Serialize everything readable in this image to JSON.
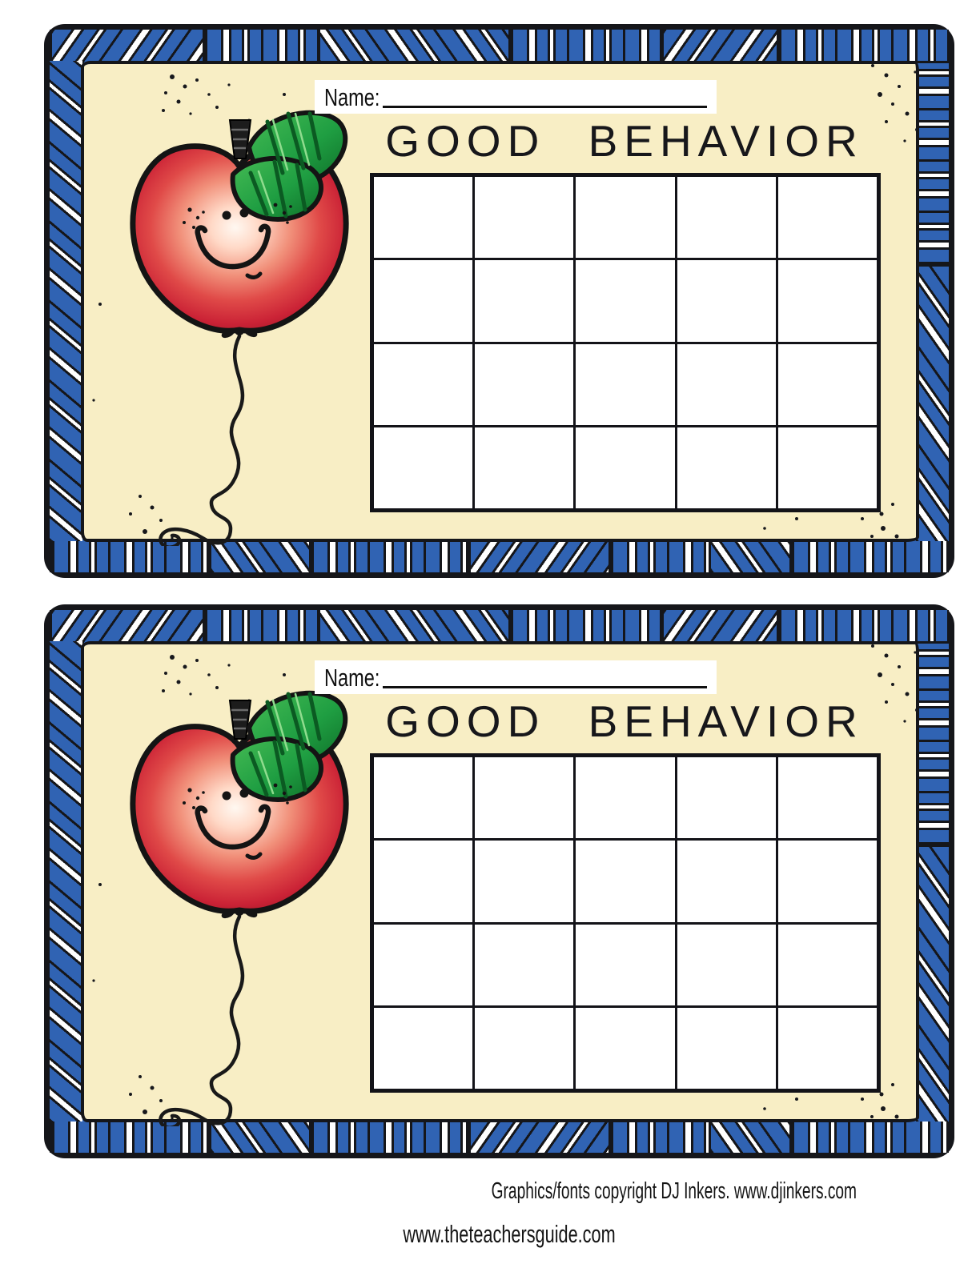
{
  "page": {
    "card_instances": 2,
    "footer": {
      "credit_line": "Graphics/fonts copyright DJ Inkers. www.djinkers.com",
      "site_line": "www.theteachersguide.com"
    }
  },
  "card": {
    "name_label": "Name:",
    "title": "GOOD BEHAVIOR",
    "grid": {
      "rows": 4,
      "cols": 5
    },
    "illustration": "smiling-apple-balloon-with-string"
  },
  "colors": {
    "cream_background": "#f8eec5",
    "border_blue": "#3063b3",
    "ink_black": "#15161a",
    "apple_red": "#cb2336",
    "leaf_green": "#1f9e42",
    "cell_white": "#ffffff"
  }
}
